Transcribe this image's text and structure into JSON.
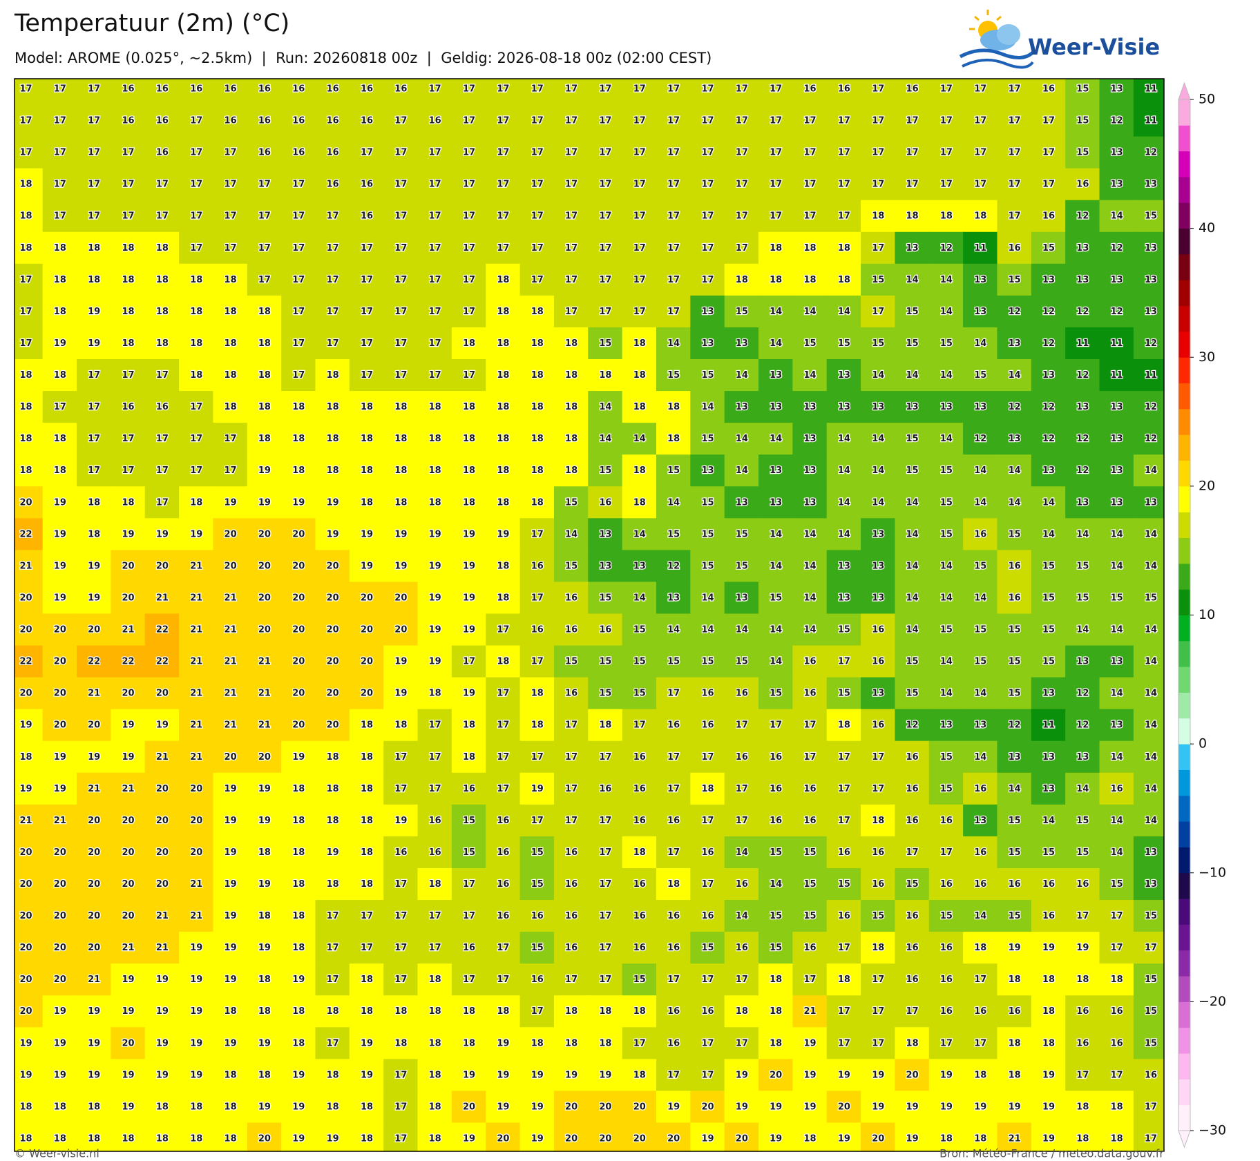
{
  "header": {
    "title": "Temperatuur (2m) (°C)",
    "subtitle": "Model: AROME (0.025°, ~2.5km)  |  Run: 20260818 00z  |  Geldig: 2026-08-18 00z (02:00 CEST)",
    "logo": "Weer-Visie"
  },
  "map": {
    "grid": [
      [
        17,
        17,
        17,
        16,
        16,
        16,
        16,
        16,
        16,
        16,
        16,
        16,
        17,
        17,
        17,
        17,
        17,
        17,
        17,
        17,
        17,
        17,
        17,
        16,
        16,
        17,
        16,
        17,
        17,
        17,
        16,
        15,
        13,
        11
      ],
      [
        17,
        17,
        17,
        16,
        16,
        17,
        16,
        16,
        16,
        16,
        16,
        17,
        16,
        17,
        17,
        17,
        17,
        17,
        17,
        17,
        17,
        17,
        17,
        17,
        17,
        17,
        17,
        17,
        17,
        17,
        17,
        15,
        12,
        11
      ],
      [
        17,
        17,
        17,
        17,
        16,
        17,
        17,
        16,
        16,
        16,
        17,
        17,
        17,
        17,
        17,
        17,
        17,
        17,
        17,
        17,
        17,
        17,
        17,
        17,
        17,
        17,
        17,
        17,
        17,
        17,
        17,
        15,
        13,
        12
      ],
      [
        18,
        17,
        17,
        17,
        17,
        17,
        17,
        17,
        17,
        16,
        16,
        17,
        17,
        17,
        17,
        17,
        17,
        17,
        17,
        17,
        17,
        17,
        17,
        17,
        17,
        17,
        17,
        17,
        17,
        17,
        17,
        16,
        13,
        13
      ],
      [
        18,
        17,
        17,
        17,
        17,
        17,
        17,
        17,
        17,
        17,
        16,
        17,
        17,
        17,
        17,
        17,
        17,
        17,
        17,
        17,
        17,
        17,
        17,
        17,
        17,
        18,
        18,
        18,
        18,
        17,
        16,
        12,
        14,
        15
      ],
      [
        18,
        18,
        18,
        18,
        18,
        17,
        17,
        17,
        17,
        17,
        17,
        17,
        17,
        17,
        17,
        17,
        17,
        17,
        17,
        17,
        17,
        17,
        18,
        18,
        18,
        17,
        13,
        12,
        11,
        16,
        15,
        13,
        12,
        13
      ],
      [
        17,
        18,
        18,
        18,
        18,
        18,
        18,
        17,
        17,
        17,
        17,
        17,
        17,
        17,
        18,
        17,
        17,
        17,
        17,
        17,
        17,
        18,
        18,
        18,
        18,
        15,
        14,
        14,
        13,
        15,
        13,
        13,
        13,
        13
      ],
      [
        17,
        18,
        19,
        18,
        18,
        18,
        18,
        18,
        17,
        17,
        17,
        17,
        17,
        17,
        18,
        18,
        17,
        17,
        17,
        17,
        13,
        15,
        14,
        14,
        14,
        17,
        15,
        14,
        13,
        12,
        12,
        12,
        12,
        13
      ],
      [
        17,
        19,
        19,
        18,
        18,
        18,
        18,
        18,
        17,
        17,
        17,
        17,
        17,
        18,
        18,
        18,
        18,
        15,
        18,
        14,
        13,
        13,
        14,
        15,
        15,
        15,
        15,
        15,
        14,
        13,
        12,
        11,
        11,
        12
      ],
      [
        18,
        18,
        17,
        17,
        17,
        18,
        18,
        18,
        17,
        18,
        17,
        17,
        17,
        17,
        18,
        18,
        18,
        18,
        18,
        15,
        15,
        14,
        13,
        14,
        13,
        14,
        14,
        14,
        15,
        14,
        13,
        12,
        11,
        11
      ],
      [
        18,
        17,
        17,
        16,
        16,
        17,
        18,
        18,
        18,
        18,
        18,
        18,
        18,
        18,
        18,
        18,
        18,
        14,
        18,
        18,
        14,
        13,
        13,
        13,
        13,
        13,
        13,
        13,
        13,
        12,
        12,
        13,
        13,
        12
      ],
      [
        18,
        18,
        17,
        17,
        17,
        17,
        17,
        18,
        18,
        18,
        18,
        18,
        18,
        18,
        18,
        18,
        18,
        14,
        14,
        18,
        15,
        14,
        14,
        13,
        14,
        14,
        15,
        14,
        12,
        13,
        12,
        12,
        13,
        12
      ],
      [
        18,
        18,
        17,
        17,
        17,
        17,
        17,
        19,
        18,
        18,
        18,
        18,
        18,
        18,
        18,
        18,
        18,
        15,
        18,
        15,
        13,
        14,
        13,
        13,
        14,
        14,
        15,
        15,
        14,
        14,
        13,
        12,
        13,
        14
      ],
      [
        20,
        19,
        18,
        18,
        17,
        18,
        19,
        19,
        19,
        19,
        18,
        18,
        18,
        18,
        18,
        18,
        15,
        16,
        18,
        14,
        15,
        13,
        13,
        13,
        14,
        14,
        14,
        15,
        14,
        14,
        14,
        13,
        13,
        13
      ],
      [
        22,
        19,
        18,
        19,
        19,
        19,
        20,
        20,
        20,
        19,
        19,
        19,
        19,
        19,
        19,
        17,
        14,
        13,
        14,
        15,
        15,
        15,
        14,
        14,
        14,
        13,
        14,
        15,
        16,
        15,
        14,
        14,
        14,
        14
      ],
      [
        21,
        19,
        19,
        20,
        20,
        21,
        20,
        20,
        20,
        20,
        19,
        19,
        19,
        19,
        18,
        16,
        15,
        13,
        13,
        12,
        15,
        15,
        14,
        14,
        13,
        13,
        14,
        14,
        15,
        16,
        15,
        15,
        14,
        14
      ],
      [
        20,
        19,
        19,
        20,
        21,
        21,
        21,
        20,
        20,
        20,
        20,
        20,
        19,
        19,
        18,
        17,
        16,
        15,
        14,
        13,
        14,
        13,
        15,
        14,
        13,
        13,
        14,
        14,
        14,
        16,
        15,
        15,
        15,
        15
      ],
      [
        20,
        20,
        20,
        21,
        22,
        21,
        21,
        20,
        20,
        20,
        20,
        20,
        19,
        19,
        17,
        16,
        16,
        16,
        15,
        14,
        14,
        14,
        14,
        14,
        15,
        16,
        14,
        15,
        15,
        15,
        15,
        14,
        14,
        14
      ],
      [
        22,
        20,
        22,
        22,
        22,
        21,
        21,
        21,
        20,
        20,
        20,
        19,
        19,
        17,
        18,
        17,
        15,
        15,
        15,
        15,
        15,
        15,
        14,
        16,
        17,
        16,
        15,
        14,
        15,
        15,
        15,
        13,
        13,
        14
      ],
      [
        20,
        20,
        21,
        20,
        20,
        21,
        21,
        21,
        20,
        20,
        20,
        19,
        18,
        19,
        17,
        18,
        16,
        15,
        15,
        17,
        16,
        16,
        15,
        16,
        15,
        13,
        15,
        14,
        14,
        15,
        13,
        12,
        14,
        14
      ],
      [
        19,
        20,
        20,
        19,
        19,
        21,
        21,
        21,
        20,
        20,
        18,
        18,
        17,
        18,
        17,
        18,
        17,
        18,
        17,
        16,
        16,
        17,
        17,
        17,
        18,
        16,
        12,
        13,
        13,
        12,
        11,
        12,
        13,
        14
      ],
      [
        18,
        19,
        19,
        19,
        21,
        21,
        20,
        20,
        19,
        18,
        18,
        17,
        17,
        18,
        17,
        17,
        17,
        17,
        16,
        17,
        17,
        16,
        16,
        17,
        17,
        17,
        16,
        15,
        14,
        13,
        13,
        13,
        14,
        14
      ],
      [
        19,
        19,
        21,
        21,
        20,
        20,
        19,
        19,
        18,
        18,
        18,
        17,
        17,
        16,
        17,
        19,
        17,
        16,
        16,
        17,
        18,
        17,
        16,
        16,
        17,
        17,
        16,
        15,
        16,
        14,
        13,
        14,
        16,
        14
      ],
      [
        21,
        21,
        20,
        20,
        20,
        20,
        19,
        19,
        18,
        18,
        18,
        19,
        16,
        15,
        16,
        17,
        17,
        17,
        16,
        16,
        17,
        17,
        16,
        16,
        17,
        18,
        16,
        16,
        13,
        15,
        14,
        15,
        14,
        14
      ],
      [
        20,
        20,
        20,
        20,
        20,
        20,
        19,
        18,
        18,
        19,
        18,
        16,
        16,
        15,
        16,
        15,
        16,
        17,
        18,
        17,
        16,
        14,
        15,
        15,
        16,
        16,
        17,
        17,
        16,
        15,
        15,
        15,
        14,
        13
      ],
      [
        20,
        20,
        20,
        20,
        20,
        21,
        19,
        19,
        18,
        18,
        18,
        17,
        18,
        17,
        16,
        15,
        16,
        17,
        16,
        18,
        17,
        16,
        14,
        15,
        15,
        16,
        15,
        16,
        16,
        16,
        16,
        16,
        15,
        13
      ],
      [
        20,
        20,
        20,
        20,
        21,
        21,
        19,
        18,
        18,
        17,
        17,
        17,
        17,
        17,
        16,
        16,
        16,
        17,
        16,
        16,
        16,
        14,
        15,
        15,
        16,
        15,
        16,
        15,
        14,
        15,
        16,
        17,
        17,
        15
      ],
      [
        20,
        20,
        20,
        21,
        21,
        19,
        19,
        19,
        18,
        17,
        17,
        17,
        17,
        16,
        17,
        15,
        16,
        17,
        16,
        16,
        15,
        16,
        15,
        16,
        17,
        18,
        16,
        16,
        18,
        19,
        19,
        19,
        17,
        17
      ],
      [
        20,
        20,
        21,
        19,
        19,
        19,
        19,
        18,
        19,
        17,
        18,
        17,
        18,
        17,
        17,
        16,
        17,
        17,
        15,
        17,
        17,
        17,
        18,
        17,
        18,
        17,
        16,
        16,
        17,
        18,
        18,
        18,
        18,
        15
      ],
      [
        20,
        19,
        19,
        19,
        19,
        19,
        18,
        18,
        18,
        18,
        18,
        18,
        18,
        18,
        18,
        17,
        18,
        18,
        18,
        16,
        16,
        18,
        18,
        21,
        17,
        17,
        17,
        16,
        16,
        16,
        18,
        16,
        16,
        15
      ],
      [
        19,
        19,
        19,
        20,
        19,
        19,
        19,
        19,
        18,
        17,
        19,
        18,
        18,
        18,
        19,
        18,
        18,
        18,
        17,
        16,
        17,
        17,
        18,
        19,
        17,
        17,
        18,
        17,
        17,
        18,
        18,
        16,
        16,
        15
      ],
      [
        19,
        19,
        19,
        19,
        19,
        19,
        18,
        18,
        19,
        18,
        19,
        17,
        18,
        19,
        19,
        19,
        19,
        19,
        18,
        17,
        17,
        19,
        20,
        19,
        19,
        19,
        20,
        19,
        18,
        18,
        19,
        17,
        17,
        16
      ],
      [
        18,
        18,
        18,
        19,
        18,
        18,
        18,
        19,
        19,
        18,
        18,
        17,
        18,
        20,
        19,
        19,
        20,
        20,
        20,
        19,
        20,
        19,
        19,
        19,
        20,
        19,
        19,
        19,
        19,
        19,
        19,
        18,
        18,
        17
      ],
      [
        18,
        18,
        18,
        18,
        18,
        18,
        18,
        20,
        19,
        19,
        18,
        17,
        18,
        19,
        20,
        19,
        20,
        20,
        20,
        20,
        19,
        20,
        19,
        18,
        19,
        20,
        19,
        18,
        18,
        21,
        19,
        18,
        18,
        17
      ]
    ]
  },
  "colorbar": {
    "lim": [
      -30,
      50
    ],
    "colors": [
      "#fff0fb",
      "#ffd6f5",
      "#fcb8ef",
      "#f093e6",
      "#d96fd5",
      "#b24cbd",
      "#8b2aa8",
      "#6a1492",
      "#4a0a7a",
      "#1e0a4a",
      "#001a70",
      "#0040a0",
      "#0068c0",
      "#0098dd",
      "#33c4f5",
      "#d4fde4",
      "#a0eaa8",
      "#70d870",
      "#40c048",
      "#00b020",
      "#0a900a",
      "#3aaa18",
      "#8ccc14",
      "#cddc00",
      "#ffff00",
      "#ffd800",
      "#ffb400",
      "#ff8c00",
      "#ff5a00",
      "#ff2800",
      "#e80000",
      "#c80000",
      "#a00000",
      "#780010",
      "#4a0030",
      "#800060",
      "#a80090",
      "#d400b8",
      "#f050d0",
      "#fbaae0"
    ],
    "ticks": [
      50,
      40,
      30,
      20,
      10,
      0,
      {
        "value": -10,
        "label": "−10"
      },
      {
        "value": -20,
        "label": "−20"
      },
      {
        "value": -30,
        "label": "−30"
      }
    ]
  },
  "footer": {
    "left": "© Weer-visie.nl",
    "right": "Bron: Météo-France / meteo.data.gouv.fr"
  }
}
